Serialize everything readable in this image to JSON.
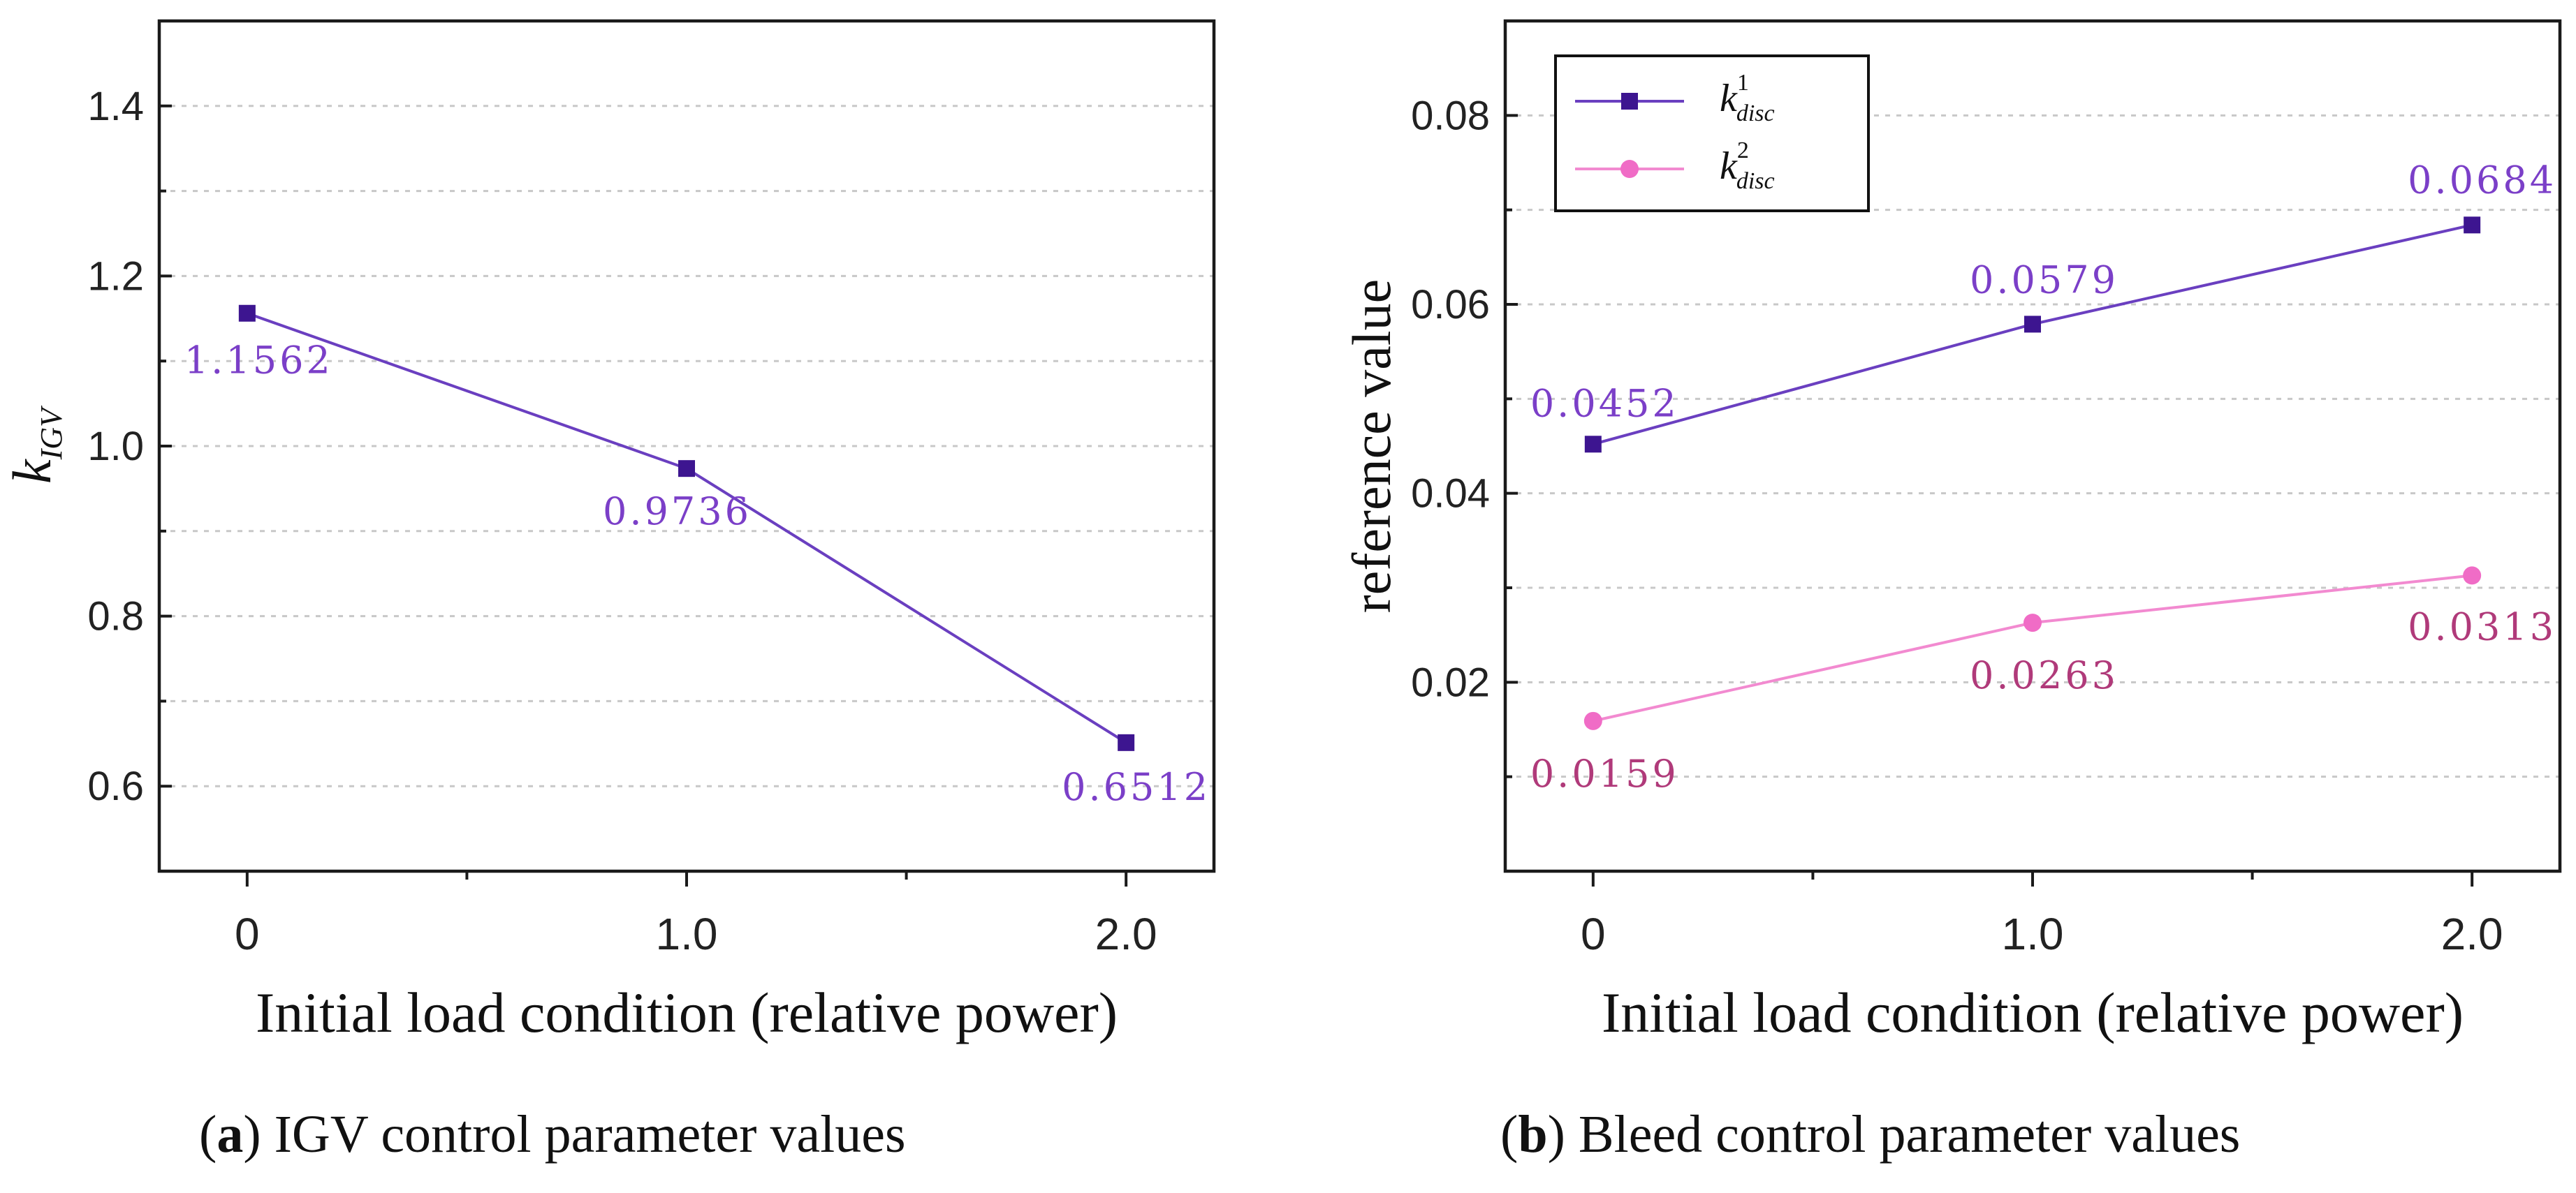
{
  "chart_data": [
    {
      "type": "line",
      "id": "a",
      "caption_letter": "a",
      "caption_text": " IGV control parameter values",
      "xlabel": "Initial load condition (relative power)",
      "ylabel_main": "k",
      "ylabel_sub": "IGV",
      "categories": [
        "0",
        "1.0",
        "2.0"
      ],
      "x": [
        0,
        1.0,
        2.0
      ],
      "xlim": [
        -0.2,
        2.2
      ],
      "ylim": [
        0.5,
        1.5
      ],
      "yticks": [
        0.6,
        0.8,
        1.0,
        1.2,
        1.4
      ],
      "ytick_labels": [
        "0.6",
        "0.8",
        "1.0",
        "1.2",
        "1.4"
      ],
      "grid": true,
      "series": [
        {
          "name": "k_IGV",
          "color": "#6a3fc0",
          "marker_color": "#3d1590",
          "marker": "square",
          "values": [
            1.1562,
            0.9736,
            0.6512
          ],
          "labels": [
            "1.1562",
            "0.9736",
            "0.6512"
          ],
          "label_color": "#7b3fc8"
        }
      ]
    },
    {
      "type": "line",
      "id": "b",
      "caption_letter": "b",
      "caption_text": " Bleed control parameter values",
      "xlabel": "Initial load condition (relative power)",
      "ylabel_main": "reference value",
      "categories": [
        "0",
        "1.0",
        "2.0"
      ],
      "x": [
        0,
        1.0,
        2.0
      ],
      "xlim": [
        -0.2,
        2.2
      ],
      "ylim": [
        0.0,
        0.09
      ],
      "yticks": [
        0.02,
        0.04,
        0.06,
        0.08
      ],
      "ytick_labels": [
        "0.02",
        "0.04",
        "0.06",
        "0.08"
      ],
      "grid": true,
      "legend_position": "top-left",
      "series": [
        {
          "name": "k_disc^1",
          "legend_main": "k",
          "legend_sub": "disc",
          "legend_sup": "1",
          "color": "#6a3fc0",
          "marker_color": "#3d1590",
          "marker": "square",
          "values": [
            0.0452,
            0.0579,
            0.0684
          ],
          "labels": [
            "0.0452",
            "0.0579",
            "0.0684"
          ],
          "label_color": "#7b3fc8"
        },
        {
          "name": "k_disc^2",
          "legend_main": "k",
          "legend_sub": "disc",
          "legend_sup": "2",
          "color": "#f28ad0",
          "marker_color": "#f06cc6",
          "marker": "circle",
          "values": [
            0.0159,
            0.0263,
            0.0313
          ],
          "labels": [
            "0.0159",
            "0.0263",
            "0.0313"
          ],
          "label_color": "#b03a7a"
        }
      ]
    }
  ]
}
